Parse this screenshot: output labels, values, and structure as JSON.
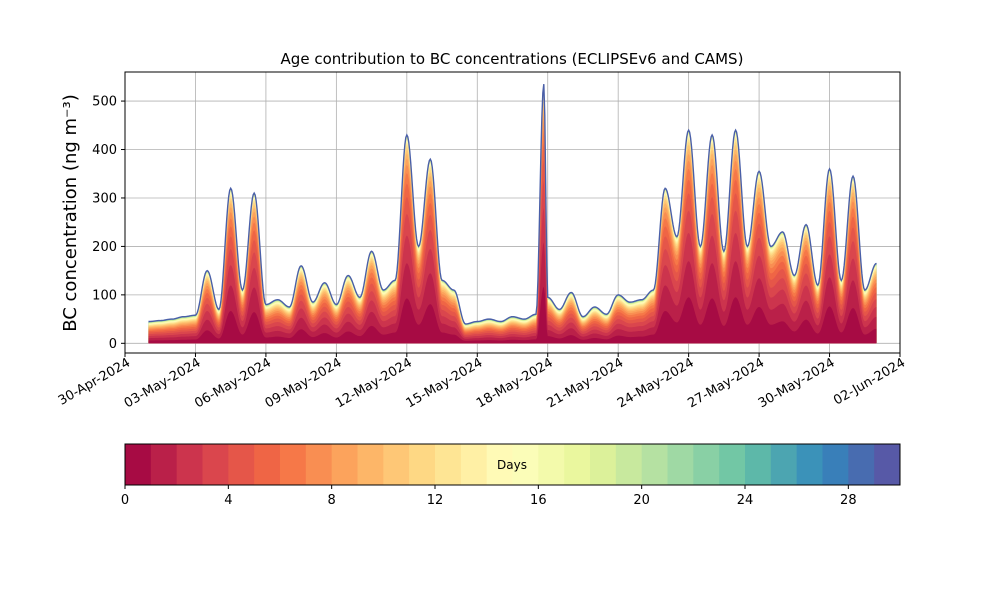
{
  "chart_data": {
    "type": "area",
    "title": "Age contribution to BC concentrations (ECLIPSEv6 and CAMS)",
    "ylabel": "BC concentration (ng m⁻³)",
    "xlabel": "",
    "ylim": [
      -20,
      560
    ],
    "xlim": [
      "2024-04-30",
      "2024-06-02"
    ],
    "grid": true,
    "y_ticks": [
      0,
      100,
      200,
      300,
      400,
      500
    ],
    "x_ticks": [
      "30-Apr-2024",
      "03-May-2024",
      "06-May-2024",
      "09-May-2024",
      "12-May-2024",
      "15-May-2024",
      "18-May-2024",
      "21-May-2024",
      "24-May-2024",
      "27-May-2024",
      "30-May-2024",
      "02-Jun-2024"
    ],
    "series_start": "2024-05-01T00:00",
    "series_end": "2024-06-01T00:00",
    "total_series": {
      "x": [
        "2024-05-01T00:00",
        "2024-05-01T12:00",
        "2024-05-02T00:00",
        "2024-05-02T12:00",
        "2024-05-03T00:00",
        "2024-05-03T12:00",
        "2024-05-04T00:00",
        "2024-05-04T12:00",
        "2024-05-05T00:00",
        "2024-05-05T12:00",
        "2024-05-06T00:00",
        "2024-05-06T12:00",
        "2024-05-07T00:00",
        "2024-05-07T12:00",
        "2024-05-08T00:00",
        "2024-05-08T12:00",
        "2024-05-09T00:00",
        "2024-05-09T12:00",
        "2024-05-10T00:00",
        "2024-05-10T12:00",
        "2024-05-11T00:00",
        "2024-05-11T12:00",
        "2024-05-12T00:00",
        "2024-05-12T12:00",
        "2024-05-13T00:00",
        "2024-05-13T12:00",
        "2024-05-14T00:00",
        "2024-05-14T12:00",
        "2024-05-15T00:00",
        "2024-05-15T12:00",
        "2024-05-16T00:00",
        "2024-05-16T12:00",
        "2024-05-17T00:00",
        "2024-05-17T12:00",
        "2024-05-17T20:00",
        "2024-05-18T00:00",
        "2024-05-18T12:00",
        "2024-05-19T00:00",
        "2024-05-19T12:00",
        "2024-05-20T00:00",
        "2024-05-20T12:00",
        "2024-05-21T00:00",
        "2024-05-21T12:00",
        "2024-05-22T00:00",
        "2024-05-22T12:00",
        "2024-05-23T00:00",
        "2024-05-23T12:00",
        "2024-05-24T00:00",
        "2024-05-24T12:00",
        "2024-05-25T00:00",
        "2024-05-25T12:00",
        "2024-05-26T00:00",
        "2024-05-26T12:00",
        "2024-05-27T00:00",
        "2024-05-27T12:00",
        "2024-05-28T00:00",
        "2024-05-28T12:00",
        "2024-05-29T00:00",
        "2024-05-29T12:00",
        "2024-05-30T00:00",
        "2024-05-30T12:00",
        "2024-05-31T00:00",
        "2024-05-31T12:00",
        "2024-06-01T00:00"
      ],
      "values": [
        45,
        47,
        50,
        55,
        58,
        150,
        70,
        320,
        110,
        310,
        80,
        90,
        75,
        160,
        85,
        125,
        80,
        140,
        95,
        190,
        110,
        130,
        430,
        200,
        380,
        130,
        110,
        40,
        45,
        50,
        45,
        55,
        50,
        60,
        535,
        95,
        70,
        105,
        55,
        75,
        60,
        100,
        85,
        90,
        110,
        320,
        220,
        440,
        200,
        430,
        190,
        440,
        200,
        355,
        200,
        230,
        140,
        245,
        120,
        360,
        130,
        345,
        110,
        165
      ]
    },
    "legend": {
      "label": "Days",
      "ticks": [
        0,
        4,
        8,
        12,
        16,
        20,
        24,
        28
      ],
      "range": [
        0,
        30
      ],
      "colormap": "Spectral"
    }
  }
}
